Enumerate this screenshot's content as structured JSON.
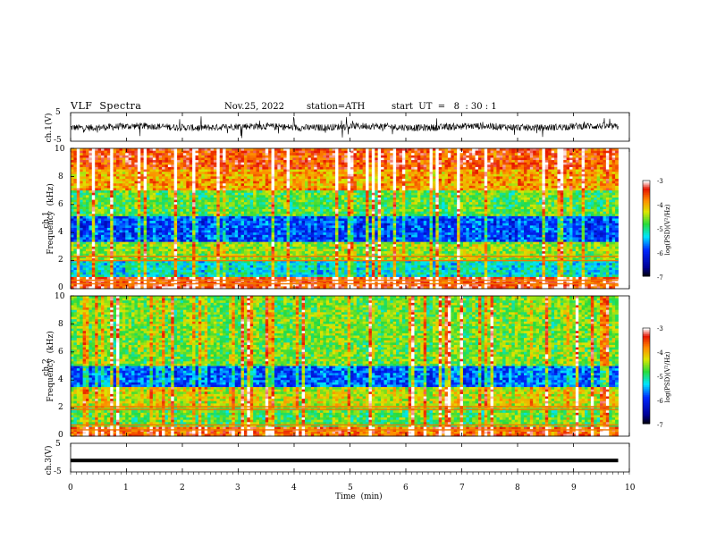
{
  "header": {
    "title": "VLF  Spectra",
    "date": "Nov.25, 2022",
    "station": "station=ATH",
    "start_ut": "start  UT  =   8  : 30 : 1"
  },
  "chart_data": {
    "type": "heatmap",
    "xlabel": "Time  (min)",
    "xlim": [
      0,
      10
    ],
    "x_ticks": [
      "0",
      "1",
      "2",
      "3",
      "4",
      "5",
      "6",
      "7",
      "8",
      "9",
      "10"
    ],
    "waveform_panels": [
      {
        "id": "ch1",
        "ylabel": "ch.1(V)",
        "ylim": [
          -5,
          5
        ],
        "y_ticks": [
          "5",
          "-5"
        ],
        "trace": "noisy waveform, mean approx 0 V, amplitude approx ±2 V with spikes",
        "data_end_min": 9.8
      },
      {
        "id": "ch3",
        "ylabel": "ch.3(V)",
        "ylim": [
          -5,
          5
        ],
        "y_ticks": [
          "5",
          "-5"
        ],
        "trace": "flat line near -1 V",
        "data_end_min": 9.8
      }
    ],
    "spectrogram_panels": [
      {
        "id": "ch1",
        "ylabel_top": "ch.1",
        "ylabel": "Frequency  (kHz)",
        "ylim": [
          0,
          10
        ],
        "y_ticks": [
          "0",
          "2",
          "4",
          "6",
          "8",
          "10"
        ],
        "data_end_min": 9.8,
        "colorbar": {
          "label": "log(PSD)(V²/Hz)",
          "range": [
            -7,
            -3
          ],
          "ticks": [
            "-3",
            "-4",
            "-5",
            "-6",
            "-7"
          ]
        },
        "bands": [
          {
            "from_khz": 0,
            "to_khz": 0.8,
            "log_psd": -3.6
          },
          {
            "from_khz": 0.8,
            "to_khz": 2.0,
            "log_psd": -5.4
          },
          {
            "from_khz": 2.0,
            "to_khz": 3.3,
            "log_psd": -4.7
          },
          {
            "from_khz": 3.3,
            "to_khz": 5.2,
            "log_psd": -6.0
          },
          {
            "from_khz": 5.2,
            "to_khz": 7.0,
            "log_psd": -4.9
          },
          {
            "from_khz": 7.0,
            "to_khz": 8.5,
            "log_psd": -4.1
          },
          {
            "from_khz": 8.5,
            "to_khz": 10,
            "log_psd": -3.7
          }
        ],
        "lines_khz": [
          2.0,
          2.3,
          0.6,
          0.35
        ]
      },
      {
        "id": "ch2",
        "ylabel_top": "ch.2",
        "ylabel": "Frequency  (kHz)",
        "ylim": [
          0,
          10
        ],
        "y_ticks": [
          "0",
          "2",
          "4",
          "6",
          "8",
          "10"
        ],
        "data_end_min": 9.8,
        "colorbar": {
          "label": "log(PSD)(V²/Hz)",
          "range": [
            -7,
            -3
          ],
          "ticks": [
            "-3",
            "-4",
            "-5",
            "-6",
            "-7"
          ]
        },
        "bands": [
          {
            "from_khz": 0,
            "to_khz": 0.6,
            "log_psd": -3.8
          },
          {
            "from_khz": 0.6,
            "to_khz": 2.0,
            "log_psd": -4.9
          },
          {
            "from_khz": 2.0,
            "to_khz": 3.5,
            "log_psd": -4.5
          },
          {
            "from_khz": 3.5,
            "to_khz": 5.0,
            "log_psd": -5.9
          },
          {
            "from_khz": 5.0,
            "to_khz": 10,
            "log_psd": -4.8
          }
        ],
        "lines_khz": [
          1.9,
          2.1,
          0.8,
          0.45
        ]
      }
    ]
  }
}
